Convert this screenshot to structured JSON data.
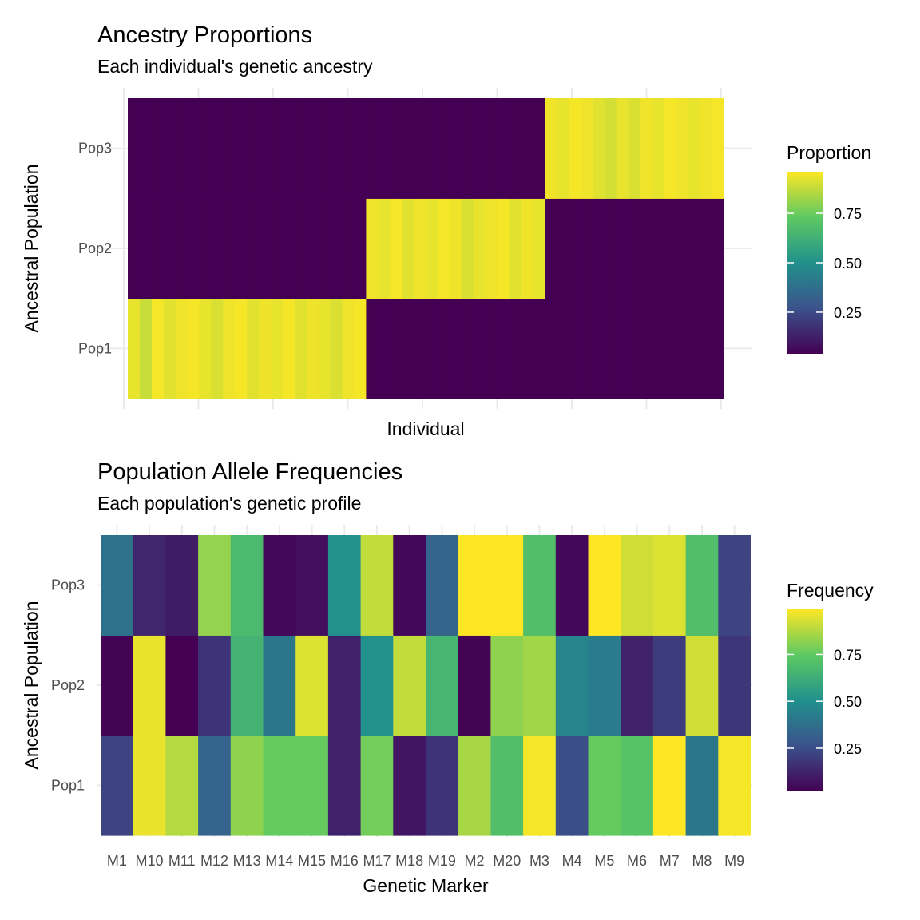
{
  "chart_data": [
    {
      "type": "heatmap",
      "title": "Ancestry Proportions",
      "subtitle": "Each individual's genetic ancestry",
      "xlabel": "Individual",
      "ylabel": "Ancestral Population",
      "y_categories": [
        "Pop1",
        "Pop2",
        "Pop3"
      ],
      "x_tick_labels": [],
      "fill_scale": "viridis",
      "legend": {
        "title": "Proportion",
        "ticks": [
          0.25,
          0.5,
          0.75
        ],
        "tick_labels": [
          "0.25",
          "0.50",
          "0.75"
        ],
        "range": [
          0.04,
          0.96
        ],
        "position": "right"
      },
      "grid": true,
      "n_individuals": 50,
      "series": [
        {
          "name": "Pop1",
          "values": [
            0.93,
            0.88,
            0.95,
            0.92,
            0.94,
            0.95,
            0.93,
            0.91,
            0.94,
            0.95,
            0.92,
            0.94,
            0.93,
            0.95,
            0.92,
            0.94,
            0.93,
            0.91,
            0.94,
            0.95,
            0.0,
            0.0,
            0.0,
            0.0,
            0.0,
            0.0,
            0.0,
            0.0,
            0.0,
            0.0,
            0.0,
            0.0,
            0.0,
            0.0,
            0.0,
            0.0,
            0.0,
            0.0,
            0.0,
            0.0,
            0.0,
            0.0,
            0.0,
            0.0,
            0.0,
            0.0,
            0.0,
            0.0,
            0.0,
            0.0
          ]
        },
        {
          "name": "Pop2",
          "values": [
            0.0,
            0.0,
            0.0,
            0.0,
            0.0,
            0.0,
            0.0,
            0.0,
            0.0,
            0.0,
            0.0,
            0.0,
            0.0,
            0.0,
            0.0,
            0.0,
            0.0,
            0.0,
            0.0,
            0.0,
            0.94,
            0.93,
            0.95,
            0.92,
            0.94,
            0.93,
            0.95,
            0.94,
            0.91,
            0.93,
            0.94,
            0.95,
            0.92,
            0.94,
            0.93,
            0.0,
            0.0,
            0.0,
            0.0,
            0.0,
            0.0,
            0.0,
            0.0,
            0.0,
            0.0,
            0.0,
            0.0,
            0.0,
            0.0,
            0.0
          ]
        },
        {
          "name": "Pop3",
          "values": [
            0.0,
            0.0,
            0.0,
            0.0,
            0.0,
            0.0,
            0.0,
            0.0,
            0.0,
            0.0,
            0.0,
            0.0,
            0.0,
            0.0,
            0.0,
            0.0,
            0.0,
            0.0,
            0.0,
            0.0,
            0.0,
            0.0,
            0.0,
            0.0,
            0.0,
            0.0,
            0.0,
            0.0,
            0.0,
            0.0,
            0.0,
            0.0,
            0.0,
            0.0,
            0.0,
            0.94,
            0.93,
            0.95,
            0.94,
            0.92,
            0.9,
            0.93,
            0.91,
            0.94,
            0.93,
            0.95,
            0.94,
            0.93,
            0.94,
            0.95
          ]
        }
      ]
    },
    {
      "type": "heatmap",
      "title": "Population Allele Frequencies",
      "subtitle": "Each population's genetic profile",
      "xlabel": "Genetic Marker",
      "ylabel": "Ancestral Population",
      "x_categories": [
        "M1",
        "M10",
        "M11",
        "M12",
        "M13",
        "M14",
        "M15",
        "M16",
        "M17",
        "M18",
        "M19",
        "M2",
        "M20",
        "M3",
        "M4",
        "M5",
        "M6",
        "M7",
        "M8",
        "M9"
      ],
      "y_categories": [
        "Pop1",
        "Pop2",
        "Pop3"
      ],
      "fill_scale": "viridis",
      "legend": {
        "title": "Frequency",
        "ticks": [
          0.25,
          0.5,
          0.75
        ],
        "tick_labels": [
          "0.25",
          "0.50",
          "0.75"
        ],
        "range": [
          0.02,
          0.99
        ],
        "position": "right"
      },
      "grid": true,
      "series": [
        {
          "name": "Pop1",
          "values": [
            0.22,
            0.96,
            0.88,
            0.33,
            0.82,
            0.76,
            0.76,
            0.12,
            0.78,
            0.08,
            0.17,
            0.86,
            0.7,
            0.98,
            0.25,
            0.76,
            0.72,
            0.99,
            0.4,
            0.98
          ]
        },
        {
          "name": "Pop2",
          "values": [
            0.03,
            0.96,
            0.02,
            0.17,
            0.65,
            0.4,
            0.94,
            0.12,
            0.5,
            0.9,
            0.66,
            0.03,
            0.82,
            0.85,
            0.45,
            0.42,
            0.12,
            0.2,
            0.92,
            0.18
          ]
        },
        {
          "name": "Pop3",
          "values": [
            0.38,
            0.13,
            0.1,
            0.83,
            0.68,
            0.04,
            0.06,
            0.5,
            0.9,
            0.04,
            0.33,
            0.99,
            0.99,
            0.7,
            0.04,
            0.99,
            0.92,
            0.94,
            0.7,
            0.22
          ]
        }
      ]
    }
  ]
}
